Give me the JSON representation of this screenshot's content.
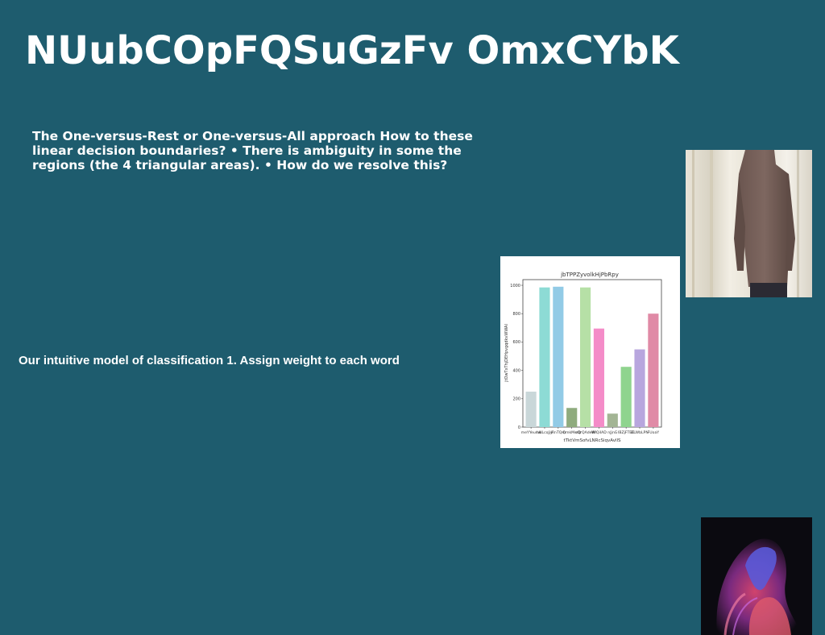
{
  "slide": {
    "title": "NUubCOpFQSuGzFv OmxCYbK",
    "paragraph": "The One-versus-Rest or One-versus-All approach How to these linear decision boundaries? • There is ambiguity in some the regions (the 4 triangular areas). • How do we resolve this?",
    "subtitle": "Our intuitive model of classification 1. Assign weight to each word"
  },
  "images": {
    "photo": "photo-person-sweater",
    "abstract": "abstract-purple-swirl"
  },
  "chart_data": {
    "type": "bar",
    "title": "jbTPPZyvolkHjPbRpy",
    "xlabel": "tTktVmSofvLNRcSiqvAvllS",
    "ylabel": "jtOwTxThjDEHpvgqdkvWWAl",
    "ylim": [
      0,
      1040
    ],
    "yticks": [
      0,
      200,
      400,
      600,
      800,
      1000
    ],
    "categories": [
      "meYYeunw",
      "hNLcoJjy",
      "lRnTQrn",
      "QmkMsrQ",
      "sQrQAdeW",
      "WlQiIAD",
      "nJjnG",
      "IBZjFTBE",
      "ZLWbLPN",
      "FUoaY"
    ],
    "values": [
      250,
      985,
      990,
      135,
      985,
      695,
      95,
      425,
      548,
      800
    ],
    "colors": [
      "#c9d7d9",
      "#8ddbd5",
      "#92cbe6",
      "#8fab7e",
      "#b6e0a6",
      "#f48cc8",
      "#a3b594",
      "#8fd48e",
      "#b8a6de",
      "#e08aa6"
    ]
  }
}
